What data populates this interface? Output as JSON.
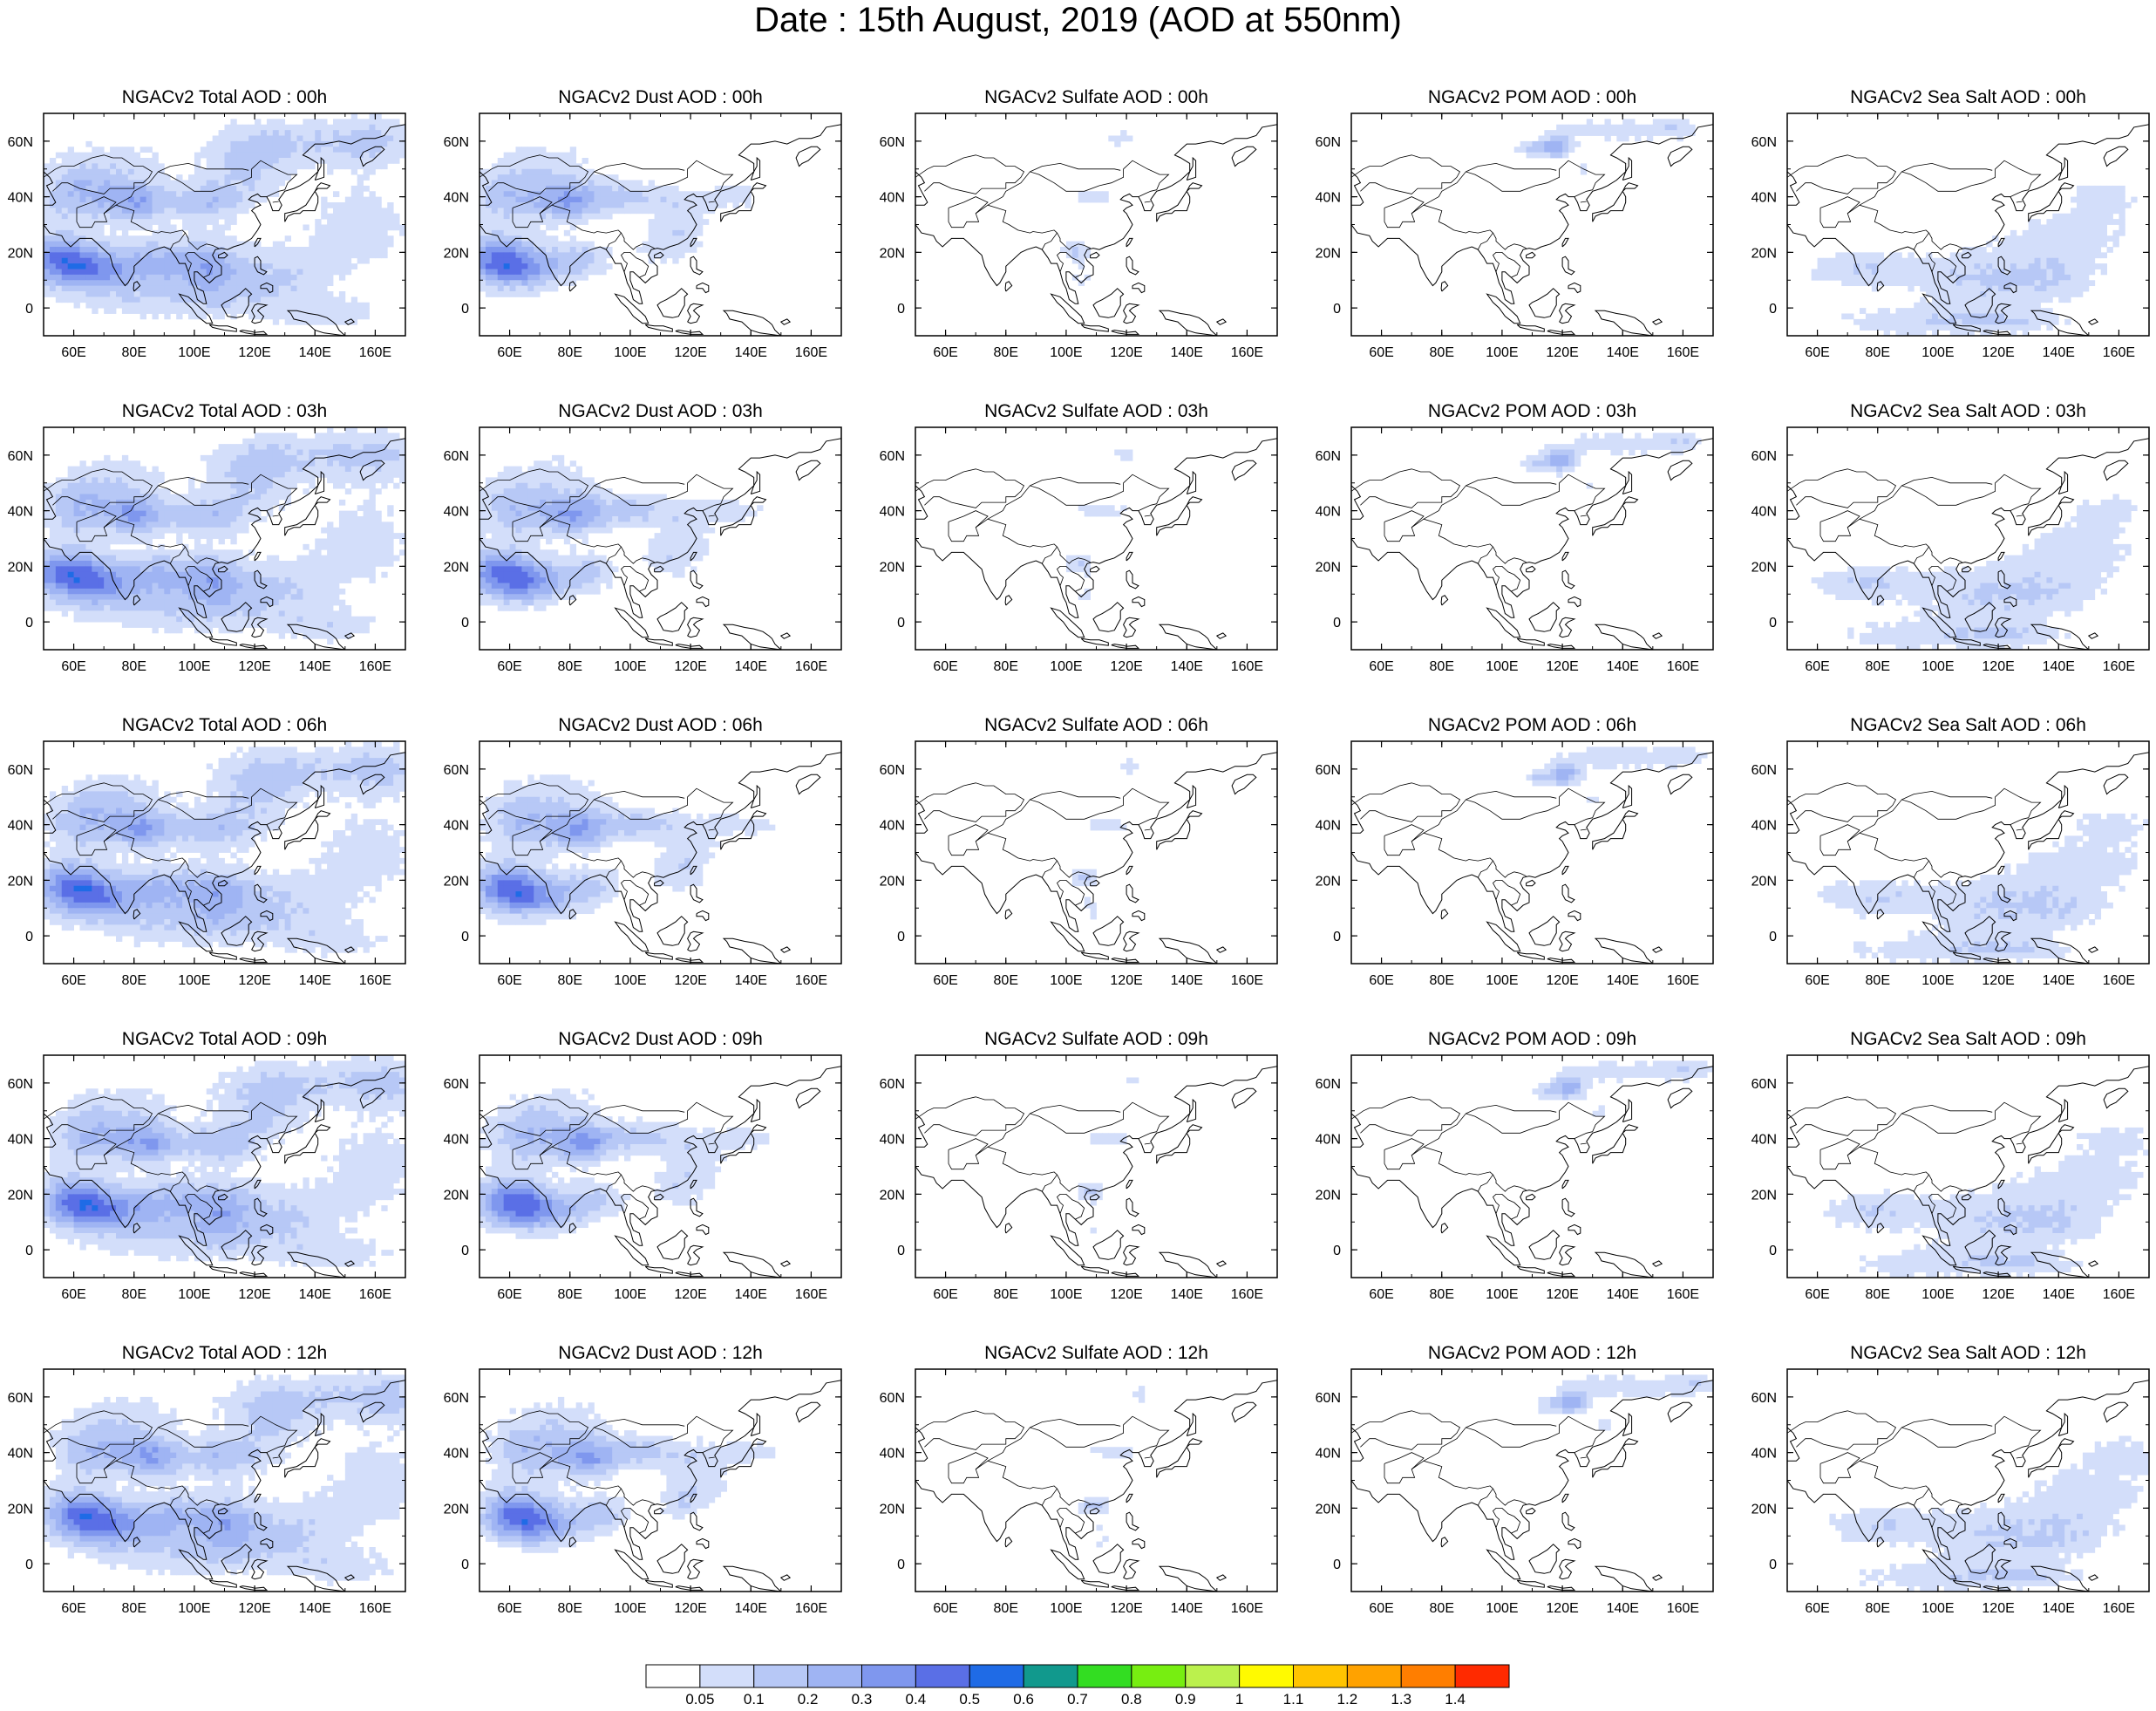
{
  "title": "Date : 15th August, 2019 (AOD at 550nm)",
  "panel_titles": [
    [
      "NGACv2 Total AOD : 00h",
      "NGACv2 Dust AOD : 00h",
      "NGACv2 Sulfate AOD : 00h",
      "NGACv2 POM AOD : 00h",
      "NGACv2 Sea Salt AOD : 00h"
    ],
    [
      "NGACv2 Total AOD : 03h",
      "NGACv2 Dust AOD : 03h",
      "NGACv2 Sulfate AOD : 03h",
      "NGACv2 POM AOD : 03h",
      "NGACv2 Sea Salt AOD : 03h"
    ],
    [
      "NGACv2 Total AOD : 06h",
      "NGACv2 Dust AOD : 06h",
      "NGACv2 Sulfate AOD : 06h",
      "NGACv2 POM AOD : 06h",
      "NGACv2 Sea Salt AOD : 06h"
    ],
    [
      "NGACv2 Total AOD : 09h",
      "NGACv2 Dust AOD : 09h",
      "NGACv2 Sulfate AOD : 09h",
      "NGACv2 POM AOD : 09h",
      "NGACv2 Sea Salt  AOD : 09h"
    ],
    [
      "NGACv2 Total AOD  : 12h",
      "NGACv2 Dust AOD : 12h",
      "NGACv2 Sulfate AOD : 12h",
      "NGACv2 POM  AOD : 12h",
      "NGACv2 Sea Salt  AOD : 12h"
    ]
  ],
  "map": {
    "lon_range": [
      50,
      170
    ],
    "lat_range": [
      -10,
      70
    ],
    "x_ticks": [
      "60E",
      "80E",
      "100E",
      "120E",
      "140E",
      "160E"
    ],
    "y_ticks": [
      "60N",
      "40N",
      "20N",
      "0"
    ]
  },
  "colorbar": {
    "labels": [
      "0.05",
      "0.1",
      "0.2",
      "0.3",
      "0.4",
      "0.5",
      "0.6",
      "0.7",
      "0.8",
      "0.9",
      "1",
      "1.1",
      "1.2",
      "1.3",
      "1.4"
    ],
    "colors": [
      "#ffffff",
      "#d3defa",
      "#b7c8f6",
      "#9fb4f3",
      "#7f97ee",
      "#5a6fe6",
      "#1f6be6",
      "#11998d",
      "#33dd22",
      "#77ee11",
      "#bbf14d",
      "#fffa00",
      "#ffc400",
      "#ffa200",
      "#ff7e00",
      "#ff2a00"
    ]
  }
}
